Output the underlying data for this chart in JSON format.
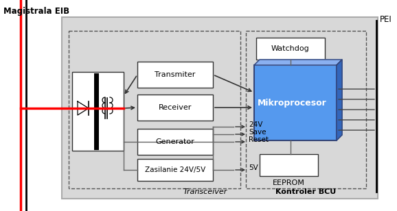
{
  "fig_w": 5.78,
  "fig_h": 3.08,
  "dpi": 100,
  "magistrala_label": "Magistrala EIB",
  "pei_label": "PEI",
  "transceiver_label": "Transceiver",
  "kontroler_label": "Kontroler BCU",
  "transmiter_label": "Transmiter",
  "receiver_label": "Receiver",
  "generator_label": "Generator",
  "zasilanie_label": "Zasilanie 24V/5V",
  "watchdog_label": "Watchdog",
  "eeprom_label": "EEPROM",
  "mikro_label": "Mikroprocesor",
  "v24_label": "24V",
  "save_label": "Save",
  "reset_label": "Reset",
  "v5_label": "5V",
  "gray_bg": "#d8d8d8",
  "white": "#ffffff",
  "blue_mikro": "#5599ee",
  "blue_mikro_top": "#8ab0f0",
  "blue_mikro_side": "#3366bb",
  "dark_line": "#333333",
  "mid_line": "#666666",
  "arrow_color": "#333333"
}
